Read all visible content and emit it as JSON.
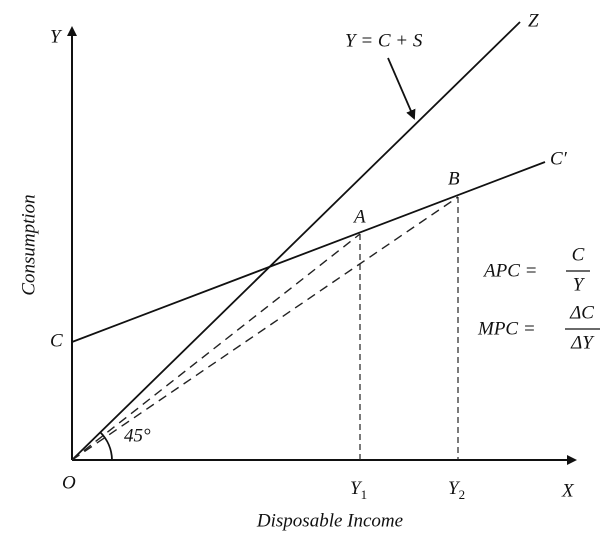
{
  "axes": {
    "y_axis": "Y",
    "x_axis": "X",
    "origin": "O",
    "y_title": "Consumption",
    "x_title": "Disposable Income"
  },
  "lines": {
    "line_45": "Z",
    "line_45_eq": "Y = C + S",
    "consumption": "C′",
    "intercept": "C",
    "angle": "45°"
  },
  "points": {
    "a": "A",
    "b": "B",
    "y1": {
      "text": "Y",
      "sub": "1"
    },
    "y2": {
      "text": "Y",
      "sub": "2"
    }
  },
  "formulas": {
    "apc": {
      "lhs": "APC =",
      "num": "C",
      "den": "Y"
    },
    "mpc": {
      "lhs": "MPC =",
      "num": "ΔC",
      "den": "ΔY"
    }
  }
}
